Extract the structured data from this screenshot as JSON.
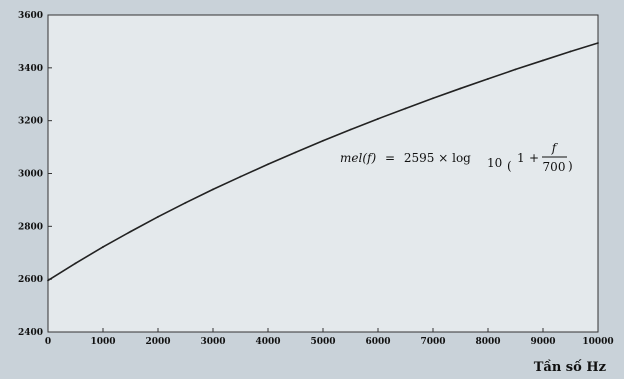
{
  "chart_data": {
    "type": "line",
    "xlabel": "Tần số Hz",
    "ylabel": "",
    "xlim": [
      0,
      10000
    ],
    "ylim": [
      2400,
      3600
    ],
    "x_ticks": [
      0,
      1000,
      2000,
      3000,
      4000,
      5000,
      6000,
      7000,
      8000,
      9000,
      10000
    ],
    "y_ticks": [
      2400,
      2600,
      2800,
      3000,
      3200,
      3400,
      3600
    ],
    "x_tick_labels": [
      "0",
      "1000",
      "2000",
      "3000",
      "4000",
      "5000",
      "6000",
      "7000",
      "8000",
      "9000",
      "10000"
    ],
    "y_tick_labels": [
      "2400",
      "2600",
      "2800",
      "3000",
      "3200",
      "3400",
      "3600"
    ],
    "grid": false,
    "series": [
      {
        "x": [
          0,
          500,
          1000,
          1500,
          2000,
          2500,
          3000,
          3500,
          4000,
          4500,
          5000,
          5500,
          6000,
          6500,
          7000,
          7500,
          8000,
          8500,
          9000,
          9500,
          10000
        ],
        "y": [
          2595,
          2660,
          2722,
          2780,
          2836,
          2889,
          2940,
          2988,
          3035,
          3080,
          3124,
          3166,
          3207,
          3246,
          3285,
          3322,
          3358,
          3394,
          3428,
          3462,
          3494
        ],
        "color": "#222222"
      }
    ],
    "annotation": {
      "lhs": "mel(f)",
      "eq": "=",
      "coef": "2595",
      "times": "×",
      "log": "log",
      "base": "10",
      "one": "1",
      "plus": "+",
      "num": "f",
      "den": "700"
    }
  }
}
